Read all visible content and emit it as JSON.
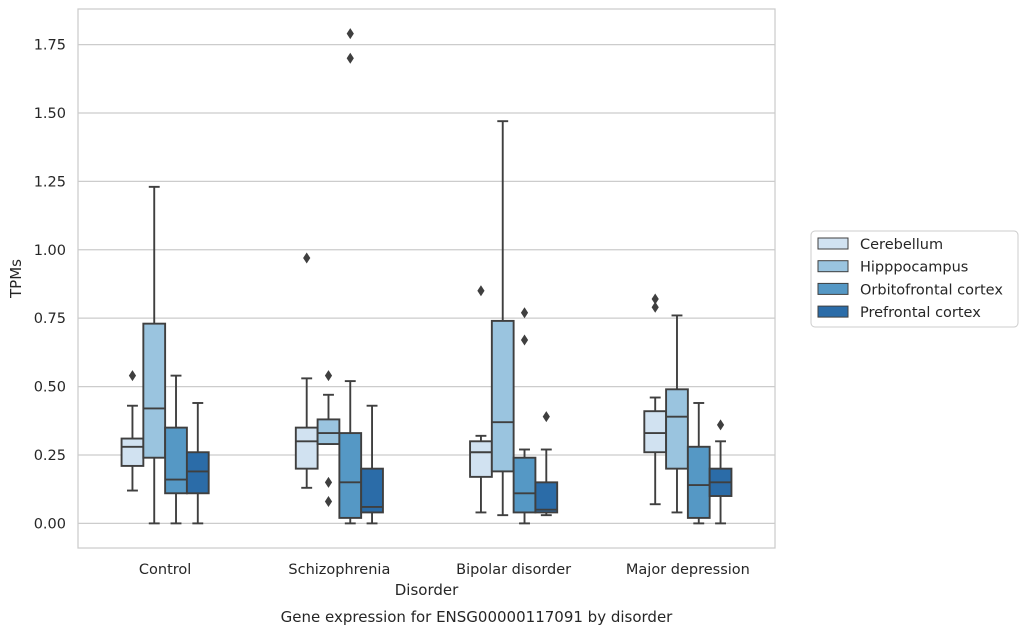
{
  "chart_data": {
    "type": "boxplot",
    "title": "",
    "caption": "Gene expression for ENSG00000117091 by disorder",
    "xlabel": "Disorder",
    "ylabel": "TPMs",
    "ylim": [
      -0.09,
      1.88
    ],
    "yticks": [
      0.0,
      0.25,
      0.5,
      0.75,
      1.0,
      1.25,
      1.5,
      1.75
    ],
    "ytick_labels": [
      "0.00",
      "0.25",
      "0.50",
      "0.75",
      "1.00",
      "1.25",
      "1.50",
      "1.75"
    ],
    "grid": true,
    "legend_position": "right",
    "categories": [
      "Control",
      "Schizophrenia",
      "Bipolar disorder",
      "Major depression"
    ],
    "series": [
      {
        "name": "Cerebellum",
        "color": "#d1e2f1",
        "boxes": [
          {
            "whislo": 0.12,
            "q1": 0.21,
            "med": 0.28,
            "q3": 0.31,
            "whishi": 0.43,
            "fliers": [
              0.54
            ]
          },
          {
            "whislo": 0.13,
            "q1": 0.2,
            "med": 0.3,
            "q3": 0.35,
            "whishi": 0.53,
            "fliers": [
              0.97
            ]
          },
          {
            "whislo": 0.04,
            "q1": 0.17,
            "med": 0.26,
            "q3": 0.3,
            "whishi": 0.32,
            "fliers": [
              0.85
            ]
          },
          {
            "whislo": 0.07,
            "q1": 0.26,
            "med": 0.33,
            "q3": 0.41,
            "whishi": 0.46,
            "fliers": [
              0.79,
              0.82
            ]
          }
        ]
      },
      {
        "name": "Hipppocampus",
        "color": "#9ac4df",
        "boxes": [
          {
            "whislo": 0.0,
            "q1": 0.24,
            "med": 0.42,
            "q3": 0.73,
            "whishi": 1.23,
            "fliers": []
          },
          {
            "whislo": 0.29,
            "q1": 0.29,
            "med": 0.33,
            "q3": 0.38,
            "whishi": 0.47,
            "fliers": [
              0.08,
              0.15,
              0.54
            ]
          },
          {
            "whislo": 0.03,
            "q1": 0.19,
            "med": 0.37,
            "q3": 0.74,
            "whishi": 1.47,
            "fliers": []
          },
          {
            "whislo": 0.04,
            "q1": 0.2,
            "med": 0.39,
            "q3": 0.49,
            "whishi": 0.76,
            "fliers": []
          }
        ]
      },
      {
        "name": "Orbitofrontal cortex",
        "color": "#5598c5",
        "boxes": [
          {
            "whislo": 0.0,
            "q1": 0.11,
            "med": 0.16,
            "q3": 0.35,
            "whishi": 0.54,
            "fliers": []
          },
          {
            "whislo": 0.0,
            "q1": 0.02,
            "med": 0.15,
            "q3": 0.33,
            "whishi": 0.52,
            "fliers": [
              1.7,
              1.79
            ]
          },
          {
            "whislo": 0.0,
            "q1": 0.04,
            "med": 0.11,
            "q3": 0.24,
            "whishi": 0.27,
            "fliers": [
              0.67,
              0.77
            ]
          },
          {
            "whislo": 0.0,
            "q1": 0.02,
            "med": 0.14,
            "q3": 0.28,
            "whishi": 0.44,
            "fliers": []
          }
        ]
      },
      {
        "name": "Prefrontal cortex",
        "color": "#2b6ca8",
        "boxes": [
          {
            "whislo": 0.0,
            "q1": 0.11,
            "med": 0.19,
            "q3": 0.26,
            "whishi": 0.44,
            "fliers": []
          },
          {
            "whislo": 0.0,
            "q1": 0.04,
            "med": 0.06,
            "q3": 0.2,
            "whishi": 0.43,
            "fliers": []
          },
          {
            "whislo": 0.03,
            "q1": 0.04,
            "med": 0.05,
            "q3": 0.15,
            "whishi": 0.27,
            "fliers": [
              0.39
            ]
          },
          {
            "whislo": 0.0,
            "q1": 0.1,
            "med": 0.15,
            "q3": 0.2,
            "whishi": 0.3,
            "fliers": [
              0.36
            ]
          }
        ]
      }
    ]
  }
}
